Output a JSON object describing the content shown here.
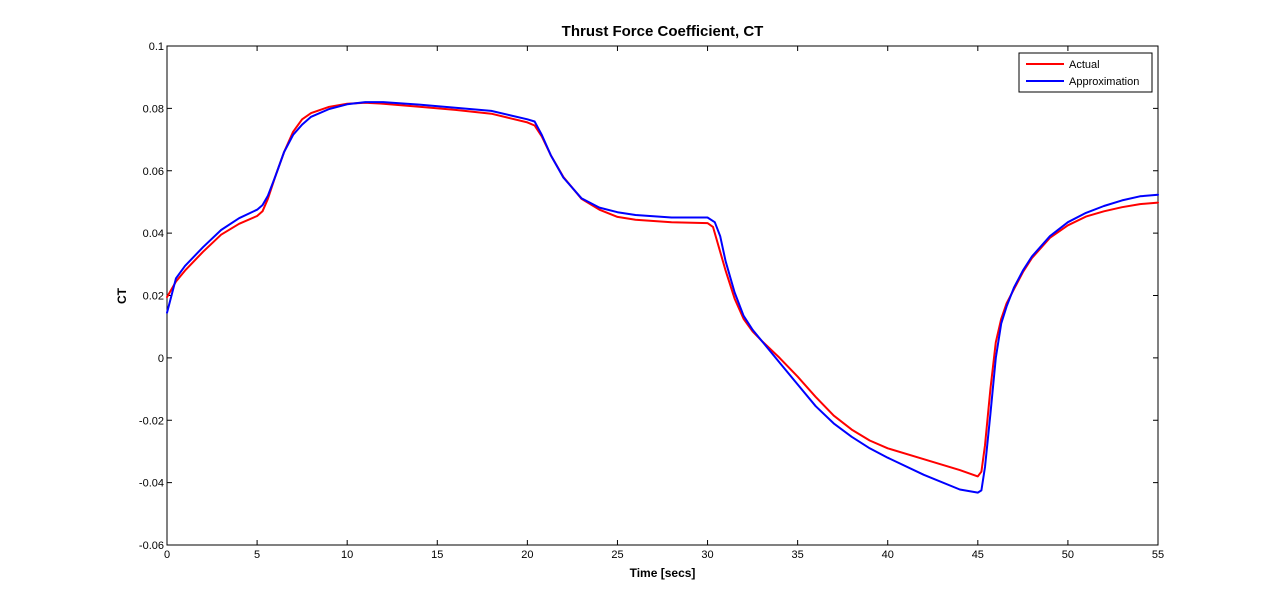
{
  "chart_data": {
    "type": "line",
    "title": "Thrust Force Coefficient, CT",
    "xlabel": "Time [secs]",
    "ylabel": "CT",
    "xlim": [
      0,
      55
    ],
    "ylim": [
      -0.06,
      0.1
    ],
    "xticks": [
      0,
      5,
      10,
      15,
      20,
      25,
      30,
      35,
      40,
      45,
      50,
      55
    ],
    "yticks": [
      -0.06,
      -0.04,
      -0.02,
      0,
      0.02,
      0.04,
      0.06,
      0.08,
      0.1
    ],
    "xtick_labels": [
      "0",
      "5",
      "10",
      "15",
      "20",
      "25",
      "30",
      "35",
      "40",
      "45",
      "50",
      "55"
    ],
    "ytick_labels": [
      "-0.06",
      "-0.04",
      "-0.02",
      "0",
      "0.02",
      "0.04",
      "0.06",
      "0.08",
      "0.1"
    ],
    "grid": false,
    "legend_position": "top-right",
    "series": [
      {
        "name": "Actual",
        "color": "#ff0000",
        "x": [
          0,
          0.5,
          1,
          2,
          3,
          4,
          5,
          5.3,
          5.6,
          6,
          6.5,
          7,
          7.5,
          8,
          9,
          10,
          11,
          12,
          14,
          16,
          18,
          20,
          20.4,
          20.8,
          21.3,
          22,
          23,
          24,
          25,
          26,
          28,
          30,
          30.3,
          30.6,
          31,
          31.5,
          32,
          32.5,
          33,
          34,
          35,
          36,
          37,
          38,
          39,
          40,
          42,
          44,
          45,
          45.2,
          45.4,
          45.7,
          46,
          46.3,
          46.6,
          47,
          47.5,
          48,
          49,
          50,
          51,
          52,
          53,
          54,
          55
        ],
        "y": [
          0.0195,
          0.0245,
          0.028,
          0.034,
          0.0395,
          0.043,
          0.0455,
          0.047,
          0.051,
          0.058,
          0.066,
          0.0725,
          0.0765,
          0.0785,
          0.0805,
          0.0815,
          0.0818,
          0.0815,
          0.0805,
          0.0795,
          0.0783,
          0.0755,
          0.0745,
          0.071,
          0.065,
          0.058,
          0.051,
          0.0475,
          0.0452,
          0.0443,
          0.0435,
          0.0432,
          0.042,
          0.036,
          0.028,
          0.019,
          0.0125,
          0.0085,
          0.0055,
          0.0,
          -0.006,
          -0.0125,
          -0.0185,
          -0.023,
          -0.0265,
          -0.029,
          -0.0325,
          -0.036,
          -0.038,
          -0.0365,
          -0.028,
          -0.01,
          0.005,
          0.0125,
          0.0175,
          0.022,
          0.0275,
          0.032,
          0.0385,
          0.0425,
          0.0453,
          0.047,
          0.0483,
          0.0493,
          0.0498
        ]
      },
      {
        "name": "Approximation",
        "color": "#0000ff",
        "x": [
          0,
          0.5,
          1,
          2,
          3,
          4,
          5,
          5.3,
          5.6,
          6,
          6.5,
          7,
          7.5,
          8,
          9,
          10,
          11,
          12,
          14,
          16,
          18,
          20,
          20.4,
          20.8,
          21.3,
          22,
          23,
          24,
          25,
          26,
          28,
          30,
          30.4,
          30.7,
          31,
          31.5,
          32,
          32.5,
          33,
          34,
          35,
          36,
          37,
          38,
          39,
          40,
          42,
          44,
          45,
          45.2,
          45.4,
          45.7,
          46,
          46.3,
          46.6,
          47,
          47.5,
          48,
          49,
          50,
          51,
          52,
          53,
          54,
          55
        ],
        "y": [
          0.0145,
          0.0255,
          0.0295,
          0.0355,
          0.041,
          0.0448,
          0.0475,
          0.049,
          0.052,
          0.058,
          0.066,
          0.0715,
          0.0748,
          0.0773,
          0.0798,
          0.0813,
          0.082,
          0.082,
          0.0812,
          0.0802,
          0.0792,
          0.0765,
          0.0758,
          0.0715,
          0.065,
          0.0578,
          0.0512,
          0.0482,
          0.0467,
          0.0458,
          0.045,
          0.045,
          0.0435,
          0.039,
          0.031,
          0.021,
          0.0135,
          0.009,
          0.0055,
          -0.0015,
          -0.0085,
          -0.0155,
          -0.021,
          -0.0253,
          -0.029,
          -0.032,
          -0.0375,
          -0.0422,
          -0.0432,
          -0.0425,
          -0.035,
          -0.018,
          0.0,
          0.011,
          0.0165,
          0.0225,
          0.028,
          0.0325,
          0.039,
          0.0435,
          0.0465,
          0.0487,
          0.0505,
          0.0518,
          0.0523
        ]
      }
    ]
  }
}
